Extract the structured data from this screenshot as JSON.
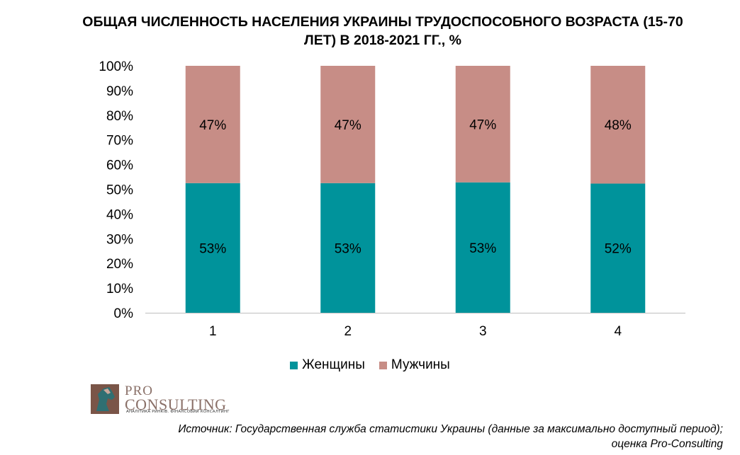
{
  "chart_data": {
    "type": "bar",
    "stacked": true,
    "title": "ОБЩАЯ ЧИСЛЕННОСТЬ НАСЕЛЕНИЯ УКРАИНЫ ТРУДОСПОСОБНОГО ВОЗРАСТА (15-70 ЛЕТ) В 2018-2021 ГГ., %",
    "title_lines": [
      "ОБЩАЯ ЧИСЛЕННОСТЬ НАСЕЛЕНИЯ УКРАИНЫ ТРУДОСПОСОБНОГО ВОЗРАСТА (15-70",
      "ЛЕТ) В 2018-2021 ГГ., %"
    ],
    "categories": [
      "1",
      "2",
      "3",
      "4"
    ],
    "series": [
      {
        "name": "Женщины",
        "color": "#00939b",
        "values": [
          52.5,
          52.5,
          52.8,
          52.3
        ],
        "labels": [
          "53%",
          "53%",
          "53%",
          "52%"
        ]
      },
      {
        "name": "Мужчины",
        "color": "#c78d86",
        "values": [
          47.5,
          47.5,
          47.2,
          47.7
        ],
        "labels": [
          "47%",
          "47%",
          "47%",
          "48%"
        ]
      }
    ],
    "ylim": [
      0,
      100
    ],
    "yticks": [
      "0%",
      "10%",
      "20%",
      "30%",
      "40%",
      "50%",
      "60%",
      "70%",
      "80%",
      "90%",
      "100%"
    ],
    "grid": false,
    "legend": "bottom"
  },
  "legend": {
    "women": {
      "label": "Женщины",
      "color": "#00939b"
    },
    "men": {
      "label": "Мужчины",
      "color": "#c78d86"
    }
  },
  "logo": {
    "pro": "PRO",
    "consulting": "CONSULTING",
    "tagline": "АНАЛІТИКА РИНКІВ. ФІНАНСОВИЙ КОНСАЛТИНГ",
    "icon": "horse-head-logo-icon"
  },
  "source": {
    "line1": "Источник: Государственная служба статистики Украины (данные за максимально доступный период);",
    "line2": "оценка Pro-Consulting"
  }
}
